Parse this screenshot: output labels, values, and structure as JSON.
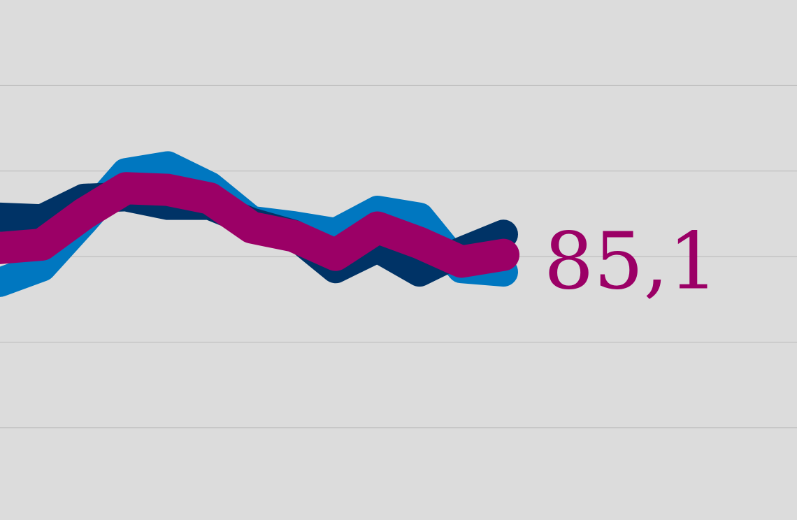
{
  "chart_data": {
    "type": "line",
    "categories": [
      null,
      null,
      null,
      null,
      null,
      null,
      null,
      null,
      null,
      null,
      null,
      null,
      null
    ],
    "series": [
      {
        "name": null,
        "color": "#0077c0",
        "values": [
          83.5,
          84.4,
          87.1,
          89.9,
          90.3,
          89.1,
          87.1,
          86.8,
          86.4,
          87.7,
          87.3,
          84.3,
          84.1
        ]
      },
      {
        "name": null,
        "color": "#003366",
        "values": [
          87.3,
          87.2,
          88.4,
          88.5,
          88.0,
          88.0,
          87.0,
          86.3,
          84.3,
          85.5,
          84.1,
          85.3,
          86.3
        ]
      },
      {
        "name": null,
        "color": "#9b0066",
        "values": [
          85.5,
          85.7,
          87.5,
          89.0,
          88.9,
          88.4,
          86.7,
          86.2,
          85.1,
          86.7,
          85.8,
          84.7,
          85.1
        ],
        "value_labels": [
          null,
          null,
          null,
          null,
          null,
          null,
          null,
          null,
          null,
          null,
          null,
          null,
          "85,1"
        ]
      }
    ],
    "ylim": [
      69.6,
      100
    ],
    "yticks": [
      75,
      80,
      85,
      90,
      95
    ],
    "grid": true,
    "background": "#dcdcdc"
  }
}
